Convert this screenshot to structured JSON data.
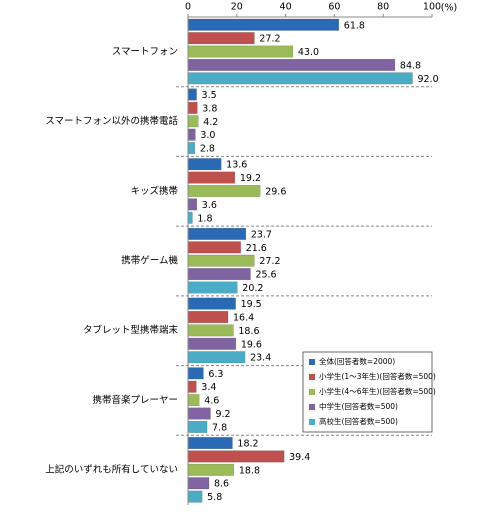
{
  "chart_data": {
    "type": "bar",
    "orientation": "horizontal",
    "unit": "(%)",
    "categories": [
      "スマートフォン",
      "スマートフォン以外の携帯電話",
      "キッズ携帯",
      "携帯ゲーム機",
      "タブレット型携帯端末",
      "携帯音楽プレーヤー",
      "上記のいずれも所有していない"
    ],
    "series": [
      {
        "name": "全体(回答者数=2000)",
        "color": "#2a6ab5",
        "values": [
          61.8,
          3.5,
          13.6,
          23.7,
          19.5,
          6.3,
          18.2
        ],
        "value_labels": [
          "61.8",
          "3.5",
          "13.6",
          "23.7",
          "19.5",
          "6.3",
          "18.2"
        ]
      },
      {
        "name": "小学生(1～3年生)(回答者数=500)",
        "color": "#c0504d",
        "values": [
          27.2,
          3.8,
          19.2,
          21.6,
          16.4,
          3.4,
          39.4
        ],
        "value_labels": [
          "27.2",
          "3.8",
          "19.2",
          "21.6",
          "16.4",
          "3.4",
          "39.4"
        ]
      },
      {
        "name": "小学生(4～6年生)(回答者数=500)",
        "color": "#9bbb59",
        "values": [
          43.0,
          4.2,
          29.6,
          27.2,
          18.6,
          4.6,
          18.8
        ],
        "value_labels": [
          "43.0",
          "4.2",
          "29.6",
          "27.2",
          "18.6",
          "4.6",
          "18.8"
        ]
      },
      {
        "name": "中学生(回答者数=500)",
        "color": "#8064a2",
        "values": [
          84.8,
          3.0,
          3.6,
          25.6,
          19.6,
          9.2,
          8.6
        ],
        "value_labels": [
          "84.8",
          "3.0",
          "3.6",
          "25.6",
          "19.6",
          "9.2",
          "8.6"
        ]
      },
      {
        "name": "高校生(回答者数=500)",
        "color": "#4bacc6",
        "values": [
          92.0,
          2.8,
          1.8,
          20.2,
          23.4,
          7.8,
          5.8
        ],
        "value_labels": [
          "92.0",
          "2.8",
          "1.8",
          "20.2",
          "23.4",
          "7.8",
          "5.8"
        ]
      }
    ],
    "xlim": [
      0,
      100
    ],
    "xticks": [
      0,
      20,
      40,
      60,
      80,
      100
    ],
    "grid": false,
    "legend": "lower right"
  }
}
